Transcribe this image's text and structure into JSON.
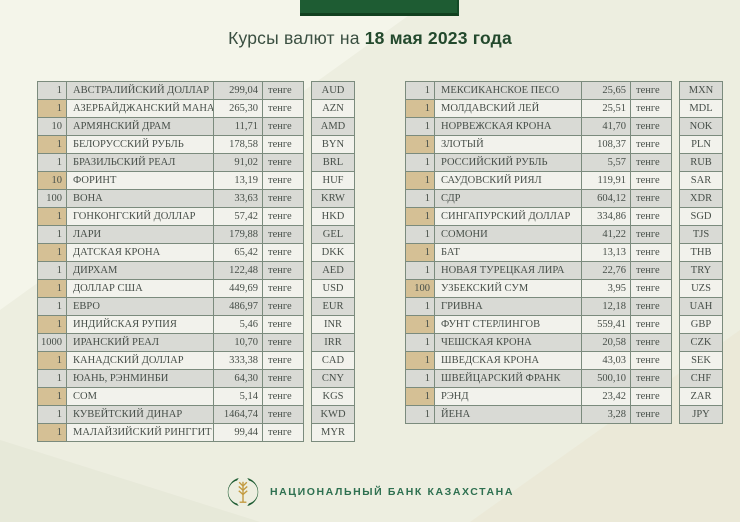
{
  "header": {
    "title_prefix": "Курсы валют на ",
    "title_date": "18 мая 2023 года"
  },
  "unit_label": "тенге",
  "tables": [
    {
      "name": "left",
      "rows": [
        {
          "qty": "1",
          "currency": "АВСТРАЛИЙСКИЙ ДОЛЛАР",
          "rate": "299,04",
          "code": "AUD"
        },
        {
          "qty": "1",
          "currency": "АЗЕРБАЙДЖАНСКИЙ МАНАТ",
          "rate": "265,30",
          "code": "AZN"
        },
        {
          "qty": "10",
          "currency": "АРМЯНСКИЙ ДРАМ",
          "rate": "11,71",
          "code": "AMD"
        },
        {
          "qty": "1",
          "currency": "БЕЛОРУССКИЙ РУБЛЬ",
          "rate": "178,58",
          "code": "BYN"
        },
        {
          "qty": "1",
          "currency": "БРАЗИЛЬСКИЙ РЕАЛ",
          "rate": "91,02",
          "code": "BRL"
        },
        {
          "qty": "10",
          "currency": "ФОРИНТ",
          "rate": "13,19",
          "code": "HUF"
        },
        {
          "qty": "100",
          "currency": "ВОНА",
          "rate": "33,63",
          "code": "KRW"
        },
        {
          "qty": "1",
          "currency": "ГОНКОНГСКИЙ ДОЛЛАР",
          "rate": "57,42",
          "code": "HKD"
        },
        {
          "qty": "1",
          "currency": "ЛАРИ",
          "rate": "179,88",
          "code": "GEL"
        },
        {
          "qty": "1",
          "currency": "ДАТСКАЯ КРОНА",
          "rate": "65,42",
          "code": "DKK"
        },
        {
          "qty": "1",
          "currency": "ДИРХАМ",
          "rate": "122,48",
          "code": "AED"
        },
        {
          "qty": "1",
          "currency": "ДОЛЛАР США",
          "rate": "449,69",
          "code": "USD"
        },
        {
          "qty": "1",
          "currency": "ЕВРО",
          "rate": "486,97",
          "code": "EUR"
        },
        {
          "qty": "1",
          "currency": "ИНДИЙСКАЯ РУПИЯ",
          "rate": "5,46",
          "code": "INR"
        },
        {
          "qty": "1000",
          "currency": "ИРАНСКИЙ РЕАЛ",
          "rate": "10,70",
          "code": "IRR"
        },
        {
          "qty": "1",
          "currency": "КАНАДСКИЙ ДОЛЛАР",
          "rate": "333,38",
          "code": "CAD"
        },
        {
          "qty": "1",
          "currency": "ЮАНЬ, РЭНМИНБИ",
          "rate": "64,30",
          "code": "CNY"
        },
        {
          "qty": "1",
          "currency": "СОМ",
          "rate": "5,14",
          "code": "KGS"
        },
        {
          "qty": "1",
          "currency": "КУВЕЙТСКИЙ ДИНАР",
          "rate": "1464,74",
          "code": "KWD"
        },
        {
          "qty": "1",
          "currency": "МАЛАЙЗИЙСКИЙ РИНГГИТ",
          "rate": "99,44",
          "code": "MYR"
        }
      ]
    },
    {
      "name": "right",
      "rows": [
        {
          "qty": "1",
          "currency": "МЕКСИКАНСКОЕ ПЕСО",
          "rate": "25,65",
          "code": "MXN"
        },
        {
          "qty": "1",
          "currency": "МОЛДАВСКИЙ ЛЕЙ",
          "rate": "25,51",
          "code": "MDL"
        },
        {
          "qty": "1",
          "currency": "НОРВЕЖСКАЯ КРОНА",
          "rate": "41,70",
          "code": "NOK"
        },
        {
          "qty": "1",
          "currency": "ЗЛОТЫЙ",
          "rate": "108,37",
          "code": "PLN"
        },
        {
          "qty": "1",
          "currency": "РОССИЙСКИЙ РУБЛЬ",
          "rate": "5,57",
          "code": "RUB"
        },
        {
          "qty": "1",
          "currency": "САУДОВСКИЙ РИЯЛ",
          "rate": "119,91",
          "code": "SAR"
        },
        {
          "qty": "1",
          "currency": "СДР",
          "rate": "604,12",
          "code": "XDR"
        },
        {
          "qty": "1",
          "currency": "СИНГАПУРСКИЙ ДОЛЛАР",
          "rate": "334,86",
          "code": "SGD"
        },
        {
          "qty": "1",
          "currency": "СОМОНИ",
          "rate": "41,22",
          "code": "TJS"
        },
        {
          "qty": "1",
          "currency": "БАТ",
          "rate": "13,13",
          "code": "THB"
        },
        {
          "qty": "1",
          "currency": "НОВАЯ ТУРЕЦКАЯ ЛИРА",
          "rate": "22,76",
          "code": "TRY"
        },
        {
          "qty": "100",
          "currency": "УЗБЕКСКИЙ СУМ",
          "rate": "3,95",
          "code": "UZS"
        },
        {
          "qty": "1",
          "currency": "ГРИВНА",
          "rate": "12,18",
          "code": "UAH"
        },
        {
          "qty": "1",
          "currency": "ФУНТ СТЕРЛИНГОВ",
          "rate": "559,41",
          "code": "GBP"
        },
        {
          "qty": "1",
          "currency": "ЧЕШСКАЯ КРОНА",
          "rate": "20,58",
          "code": "CZK"
        },
        {
          "qty": "1",
          "currency": "ШВЕДСКАЯ КРОНА",
          "rate": "43,03",
          "code": "SEK"
        },
        {
          "qty": "1",
          "currency": "ШВЕЙЦАРСКИЙ ФРАНК",
          "rate": "500,10",
          "code": "CHF"
        },
        {
          "qty": "1",
          "currency": "РЭНД",
          "rate": "23,42",
          "code": "ZAR"
        },
        {
          "qty": "1",
          "currency": "ЙЕНА",
          "rate": "3,28",
          "code": "JPY"
        }
      ]
    }
  ],
  "footer": {
    "bank_name": "НАЦИОНАЛЬНЫЙ БАНК КАЗАХСТАНА"
  },
  "colors": {
    "accent_green": "#1e5c33",
    "row_gray": "#d9dad5",
    "row_light": "#f2f2ec",
    "qty_tan": "#d5c095",
    "table_border": "#7b8b7d",
    "footer_green": "#2e7050",
    "emblem_gold": "#c2993f",
    "background": "#edeee0"
  }
}
